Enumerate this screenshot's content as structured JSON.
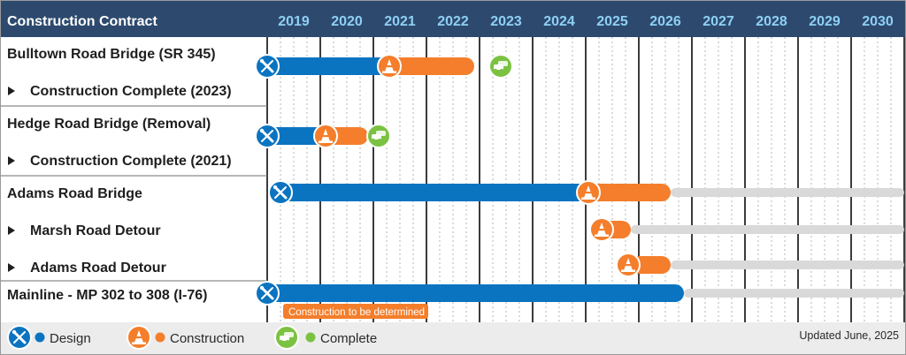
{
  "header": {
    "title": "Construction Contract",
    "years": [
      "2019",
      "2020",
      "2021",
      "2022",
      "2023",
      "2024",
      "2025",
      "2026",
      "2027",
      "2028",
      "2029",
      "2030"
    ]
  },
  "colors": {
    "header_bg": "#2d4a6e",
    "design": "#0b74c1",
    "construction": "#f47e2b",
    "complete": "#7cc242",
    "future": "#d9d9d9",
    "legend_bg": "#ececec"
  },
  "rows": [
    {
      "label": "Bulltown Road Bridge (SR 345)",
      "sub": false
    },
    {
      "label": "Construction Complete (2023)",
      "sub": true
    },
    {
      "label": "Hedge Road Bridge (Removal)",
      "sub": false
    },
    {
      "label": "Construction Complete (2021)",
      "sub": true
    },
    {
      "label": "Adams Road Bridge",
      "sub": false
    },
    {
      "label": "Marsh Road Detour",
      "sub": true
    },
    {
      "label": "Adams Road Detour",
      "sub": true
    },
    {
      "label": "Mainline - MP 302 to 308 (I-76)",
      "sub": false
    }
  ],
  "chart_data": {
    "type": "gantt",
    "x_range": [
      2018.5,
      2030.5
    ],
    "categories": [
      "2019",
      "2020",
      "2021",
      "2022",
      "2023",
      "2024",
      "2025",
      "2026",
      "2027",
      "2028",
      "2029",
      "2030"
    ],
    "bars": [
      {
        "row": 0,
        "phase": "design",
        "start": 2018.5,
        "end": 2020.8,
        "icon": "design"
      },
      {
        "row": 0,
        "phase": "construction",
        "start": 2020.8,
        "end": 2022.4,
        "icon": "construction"
      },
      {
        "row": 0,
        "phase": "complete",
        "start": 2022.9,
        "end": 2022.9,
        "icon": "complete"
      },
      {
        "row": 2,
        "phase": "design",
        "start": 2018.5,
        "end": 2019.6,
        "icon": "design"
      },
      {
        "row": 2,
        "phase": "construction",
        "start": 2019.6,
        "end": 2020.4,
        "icon": "construction"
      },
      {
        "row": 2,
        "phase": "complete",
        "start": 2020.6,
        "end": 2020.6,
        "icon": "complete"
      },
      {
        "row": 4,
        "phase": "design",
        "start": 2018.75,
        "end": 2024.55,
        "icon": "design"
      },
      {
        "row": 4,
        "phase": "construction",
        "start": 2024.55,
        "end": 2026.1,
        "icon": "construction"
      },
      {
        "row": 4,
        "phase": "future",
        "start": 2026.1,
        "end": 2030.5
      },
      {
        "row": 5,
        "phase": "construction",
        "start": 2024.8,
        "end": 2025.35,
        "icon": "construction"
      },
      {
        "row": 5,
        "phase": "future",
        "start": 2025.35,
        "end": 2030.5
      },
      {
        "row": 6,
        "phase": "construction",
        "start": 2025.3,
        "end": 2026.1,
        "icon": "construction"
      },
      {
        "row": 6,
        "phase": "future",
        "start": 2026.1,
        "end": 2030.5
      },
      {
        "row": 7,
        "phase": "design",
        "start": 2018.5,
        "end": 2026.35,
        "icon": "design"
      },
      {
        "row": 7,
        "phase": "future",
        "start": 2026.35,
        "end": 2030.5
      }
    ],
    "annotations": [
      {
        "row": 7,
        "text": "Construction to be determined",
        "x": 2018.6
      }
    ]
  },
  "legend": {
    "items": [
      {
        "label": "Design",
        "phase": "design"
      },
      {
        "label": "Construction",
        "phase": "construction"
      },
      {
        "label": "Complete",
        "phase": "complete"
      }
    ],
    "updated": "Updated June, 2025"
  }
}
